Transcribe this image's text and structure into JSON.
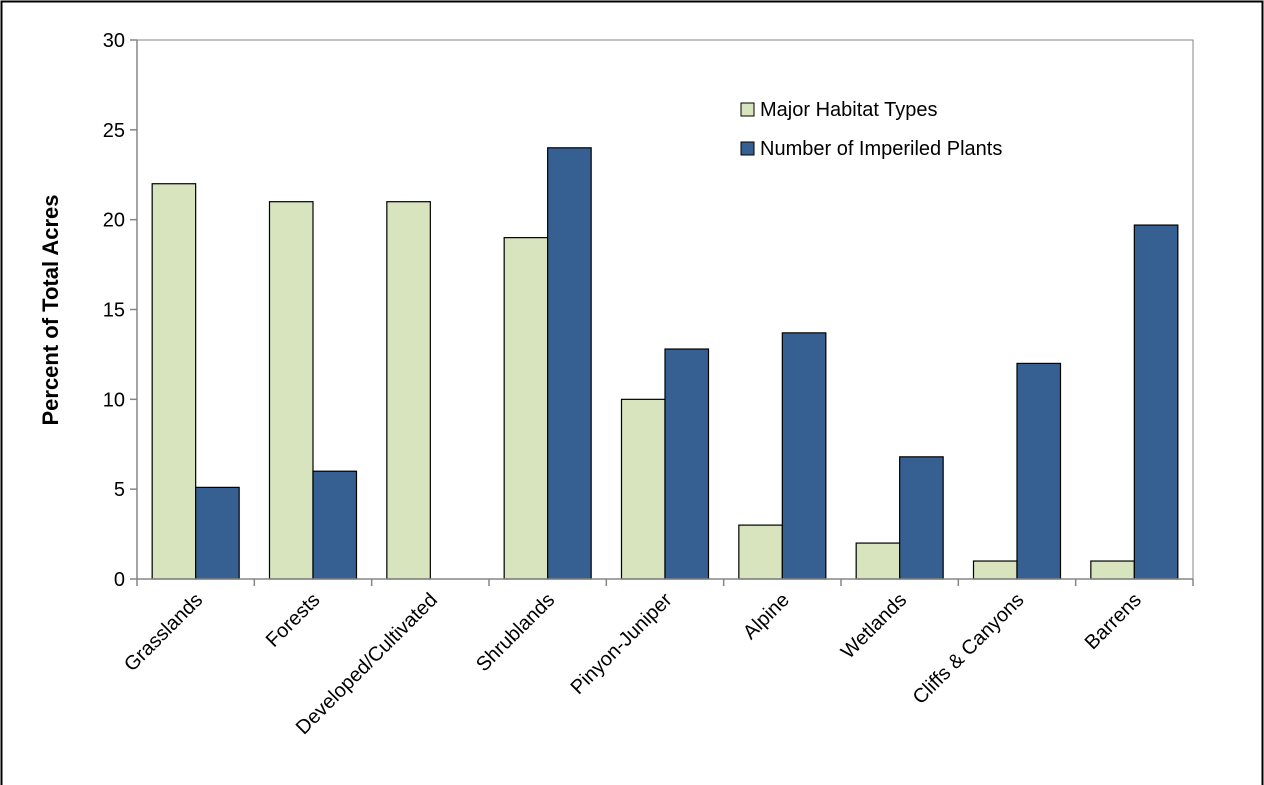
{
  "chart_data": {
    "type": "bar",
    "title": "",
    "xlabel": "",
    "ylabel": "Percent of Total Acres",
    "ylim": [
      0,
      30
    ],
    "yticks": [
      0,
      5,
      10,
      15,
      20,
      25,
      30
    ],
    "grid": false,
    "legend_position": "top-right",
    "categories": [
      "Grasslands",
      "Forests",
      "Developed/Cultivated",
      "Shrublands",
      "Pinyon-Juniper",
      "Alpine",
      "Wetlands",
      "Cliffs & Canyons",
      "Barrens"
    ],
    "series": [
      {
        "name": "Major Habitat Types",
        "color": "#d7e4bd",
        "values": [
          22,
          21,
          21,
          19,
          10,
          3,
          2,
          1,
          1
        ]
      },
      {
        "name": "Number of Imperiled Plants",
        "color": "#376092",
        "values": [
          5.1,
          6.0,
          0,
          24.0,
          12.8,
          13.7,
          6.8,
          12.0,
          19.7
        ]
      }
    ]
  }
}
